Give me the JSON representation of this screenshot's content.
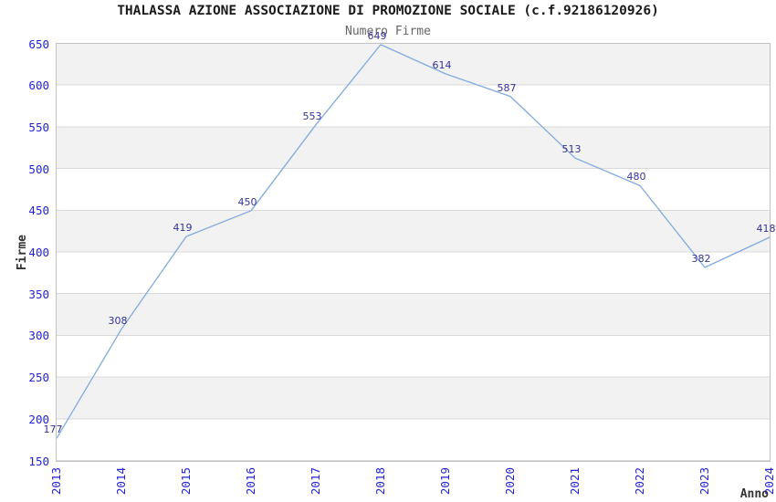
{
  "title": "THALASSA AZIONE ASSOCIAZIONE DI PROMOZIONE SOCIALE (c.f.92186120926)",
  "subtitle": "Numero Firme",
  "chart_data": {
    "type": "line",
    "x": [
      "2013",
      "2014",
      "2015",
      "2016",
      "2017",
      "2018",
      "2019",
      "2020",
      "2021",
      "2022",
      "2023",
      "2024"
    ],
    "values": [
      177,
      308,
      419,
      450,
      553,
      649,
      614,
      587,
      513,
      480,
      382,
      418
    ],
    "xlabel": "Anno",
    "ylabel": "Firme",
    "ylim": [
      150,
      650
    ],
    "yticks": [
      150,
      200,
      250,
      300,
      350,
      400,
      450,
      500,
      550,
      600,
      650
    ],
    "legend": "none",
    "grid": "horizontal gridlines every 50 with alternating gray/white bands",
    "markers": "none",
    "colors": {
      "line": "#82aadf",
      "data_label": "#333399",
      "tick_label": "#2323d4",
      "band": "#f2f2f2",
      "band_line": "#d9d9d9",
      "plot_border": "#c2c2c2",
      "title": "#1a1a1a",
      "subtitle": "#666666",
      "axis_title": "#333333"
    }
  }
}
